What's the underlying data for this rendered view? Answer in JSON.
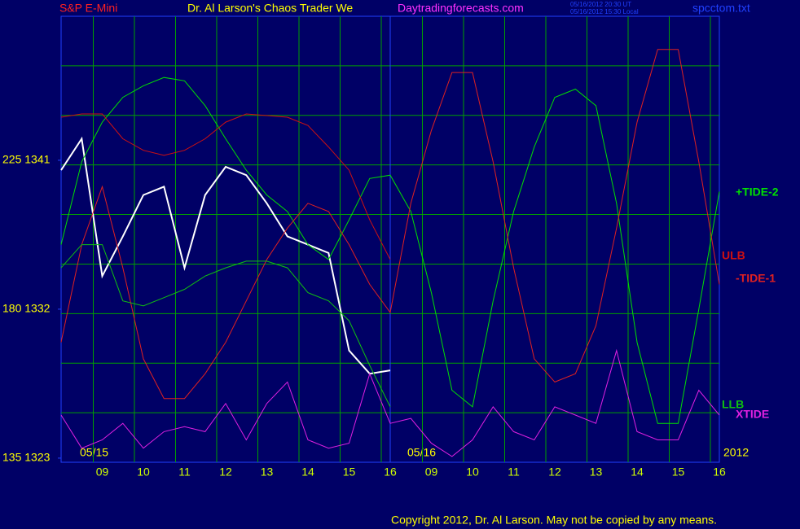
{
  "chart_data": {
    "type": "line",
    "title": "Dr. Al Larson's Chaos Trader We",
    "instrument": "S&P E-Mini",
    "website": "Daytradingforecasts.com",
    "timestamps": [
      "05/16/2012 20:30 UT",
      "05/16/2012 15:30 Local"
    ],
    "file": "spcctom.txt",
    "date_labels": [
      "05/15",
      "05/16",
      "2012"
    ],
    "copyright": "Copyright 2012, Dr. Al Larson. May not be copied by any means.",
    "x": [
      0,
      0.5,
      1,
      1.5,
      2,
      2.5,
      3,
      3.5,
      4,
      4.5,
      5,
      5.5,
      6,
      6.5,
      7,
      7.5,
      8,
      8.5,
      9,
      9.5,
      10,
      10.5,
      11,
      11.5,
      12,
      12.5,
      13,
      13.5,
      14,
      14.5,
      15,
      15.5,
      16
    ],
    "xlim": [
      0,
      16
    ],
    "xticks": [
      {
        "value": 1,
        "label": "09"
      },
      {
        "value": 2,
        "label": "10"
      },
      {
        "value": 3,
        "label": "11"
      },
      {
        "value": 4,
        "label": "12"
      },
      {
        "value": 5,
        "label": "13"
      },
      {
        "value": 6,
        "label": "14"
      },
      {
        "value": 7,
        "label": "15"
      },
      {
        "value": 8,
        "label": "16"
      },
      {
        "value": 9,
        "label": "09"
      },
      {
        "value": 10,
        "label": "10"
      },
      {
        "value": 11,
        "label": "11"
      },
      {
        "value": 12,
        "label": "12"
      },
      {
        "value": 13,
        "label": "13"
      },
      {
        "value": 14,
        "label": "14"
      },
      {
        "value": 15,
        "label": "15"
      },
      {
        "value": 16,
        "label": "16"
      }
    ],
    "ylim": [
      1322.75,
      1349.7
    ],
    "yticks": [
      {
        "value": 1341,
        "label": "225 1341"
      },
      {
        "value": 1332,
        "label": "180 1332"
      },
      {
        "value": 1323,
        "label": "135 1323"
      }
    ],
    "grid": true,
    "series": [
      {
        "color": "#ffffff",
        "values": [
          1340.4,
          1342.3,
          1334.0,
          1336.4,
          1338.9,
          1339.4,
          1334.5,
          1338.9,
          1340.6,
          1340.1,
          1338.4,
          1336.4,
          1335.9,
          1335.4,
          1329.5,
          1328.1,
          1328.3,
          null,
          null,
          null,
          null,
          null,
          null,
          null,
          null,
          null,
          null,
          null,
          null,
          null,
          null,
          null,
          null
        ]
      },
      {
        "name": "+TIDE-2",
        "color": "#00e000",
        "values": [
          1335.9,
          1340.9,
          1343.3,
          1344.8,
          1345.5,
          1346.0,
          1345.8,
          1344.3,
          1342.3,
          1340.4,
          1338.9,
          1337.9,
          1335.9,
          1335.0,
          1337.4,
          1339.9,
          1340.1,
          1337.9,
          1333.0,
          1327.1,
          1326.1,
          1332.5,
          1337.9,
          1341.8,
          1344.8,
          1345.3,
          1344.3,
          1338.4,
          1330.0,
          1325.1,
          1325.1,
          1332.0,
          1339.1
        ]
      },
      {
        "name": "ULB",
        "color": "#d01010",
        "values": [
          1343.6,
          1343.8,
          1343.8,
          1342.3,
          1341.6,
          1341.3,
          1341.6,
          1342.3,
          1343.3,
          1343.8,
          1343.7,
          1343.6,
          1343.1,
          1341.8,
          1340.4,
          1337.4,
          1335.0,
          null,
          null,
          null,
          null,
          null,
          null,
          null,
          null,
          null,
          null,
          null,
          null,
          null,
          null,
          null,
          null
        ]
      },
      {
        "name": "-TIDE-1",
        "color": "#e02020",
        "values": [
          1330.0,
          1335.9,
          1339.4,
          1334.5,
          1329.0,
          1326.6,
          1326.6,
          1328.1,
          1330.0,
          1332.5,
          1335.0,
          1336.9,
          1338.4,
          1337.9,
          1335.9,
          1333.5,
          1331.8,
          1338.4,
          1342.8,
          1346.3,
          1346.3,
          1340.9,
          1334.5,
          1329.0,
          1327.6,
          1328.1,
          1331.0,
          1336.9,
          1343.3,
          1347.7,
          1347.7,
          1340.9,
          1333.5
        ]
      },
      {
        "name": "LLB",
        "color": "#10c010",
        "values": [
          1334.5,
          1335.9,
          1335.9,
          1332.5,
          1332.2,
          1332.7,
          1333.2,
          1334.0,
          1334.5,
          1334.9,
          1334.9,
          1334.5,
          1333.0,
          1332.5,
          1331.3,
          1328.6,
          1326.1,
          null,
          null,
          null,
          null,
          null,
          null,
          null,
          null,
          null,
          null,
          null,
          null,
          null,
          null,
          null,
          null
        ]
      },
      {
        "name": "XTIDE",
        "color": "#e020e0",
        "values": [
          1325.6,
          1323.6,
          1324.1,
          1325.1,
          1323.6,
          1324.6,
          1324.9,
          1324.6,
          1326.3,
          1324.1,
          1326.3,
          1327.6,
          1324.1,
          1323.6,
          1323.9,
          1328.1,
          1325.1,
          1325.4,
          1323.9,
          1323.1,
          1324.1,
          1326.1,
          1324.6,
          1324.1,
          1326.1,
          1325.6,
          1325.1,
          1329.5,
          1324.6,
          1324.1,
          1324.1,
          1327.1,
          1325.6
        ]
      }
    ]
  }
}
